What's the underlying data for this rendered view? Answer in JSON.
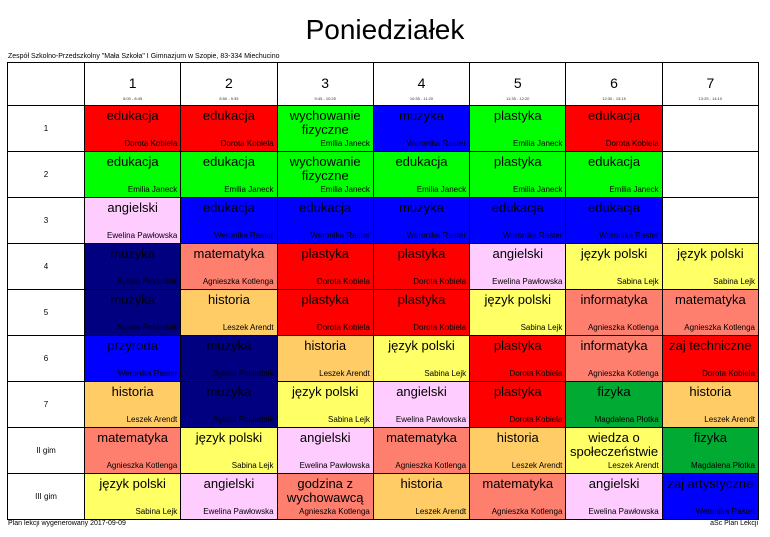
{
  "title": "Poniedziałek",
  "school": "Zespół Szkolno-Przedszkolny \"Mała Szkoła\" I Gimnazjum w Szopie, 83-334 Miechucino",
  "footer_left": "Plan lekcji wygenerowany 2017-09-09",
  "footer_right": "aSc Plan Lekcji",
  "periods": [
    {
      "num": "1",
      "time": "8:00 - 8:45"
    },
    {
      "num": "2",
      "time": "8:50 - 9:35"
    },
    {
      "num": "3",
      "time": "9:45 - 10:25"
    },
    {
      "num": "4",
      "time": "10:35 - 11:20"
    },
    {
      "num": "5",
      "time": "11:35 - 12:20"
    },
    {
      "num": "6",
      "time": "12:30 - 13:15"
    },
    {
      "num": "7",
      "time": "13:25 - 14:10"
    }
  ],
  "rows": [
    {
      "label": "1",
      "cells": [
        {
          "subject": "edukacja",
          "teacher": "Dorota Kobiela",
          "color": "red"
        },
        {
          "subject": "edukacja",
          "teacher": "Dorota Kobiela",
          "color": "red"
        },
        {
          "subject": "wychowanie fizyczne",
          "teacher": "Emilia Janeck",
          "color": "green"
        },
        {
          "subject": "muzyka",
          "teacher": "Weronika Raster",
          "color": "blue"
        },
        {
          "subject": "plastyka",
          "teacher": "Emilia Janeck",
          "color": "green"
        },
        {
          "subject": "edukacja",
          "teacher": "Dorota Kobiela",
          "color": "red"
        },
        {
          "subject": "",
          "teacher": "",
          "color": "white"
        }
      ]
    },
    {
      "label": "2",
      "cells": [
        {
          "subject": "edukacja",
          "teacher": "Emilia Janeck",
          "color": "green"
        },
        {
          "subject": "edukacja",
          "teacher": "Emilia Janeck",
          "color": "green"
        },
        {
          "subject": "wychowanie fizyczne",
          "teacher": "Emilia Janeck",
          "color": "green"
        },
        {
          "subject": "edukacja",
          "teacher": "Emilia Janeck",
          "color": "green"
        },
        {
          "subject": "plastyka",
          "teacher": "Emilia Janeck",
          "color": "green"
        },
        {
          "subject": "edukacja",
          "teacher": "Emilia Janeck",
          "color": "green"
        },
        {
          "subject": "",
          "teacher": "",
          "color": "white"
        }
      ]
    },
    {
      "label": "3",
      "cells": [
        {
          "subject": "angielski",
          "teacher": "Ewelina Pawłowska",
          "color": "pink"
        },
        {
          "subject": "edukacja",
          "teacher": "Weronika Raster",
          "color": "blue"
        },
        {
          "subject": "edukacja",
          "teacher": "Weronika Raster",
          "color": "blue"
        },
        {
          "subject": "muzyka",
          "teacher": "Weronika Raster",
          "color": "blue"
        },
        {
          "subject": "edukacja",
          "teacher": "Weronika Raster",
          "color": "blue"
        },
        {
          "subject": "edukacja",
          "teacher": "Weronika Raster",
          "color": "blue"
        },
        {
          "subject": "",
          "teacher": "",
          "color": "white"
        }
      ]
    },
    {
      "label": "4",
      "cells": [
        {
          "subject": "muzyka",
          "teacher": "Sylwia Pokładnik",
          "color": "navy"
        },
        {
          "subject": "matematyka",
          "teacher": "Agnieszka Kotlenga",
          "color": "salmon"
        },
        {
          "subject": "plastyka",
          "teacher": "Dorota Kobiela",
          "color": "red"
        },
        {
          "subject": "plastyka",
          "teacher": "Dorota Kobiela",
          "color": "red"
        },
        {
          "subject": "angielski",
          "teacher": "Ewelina Pawłowska",
          "color": "pink"
        },
        {
          "subject": "język polski",
          "teacher": "Sabina Lejk",
          "color": "yellow"
        },
        {
          "subject": "język polski",
          "teacher": "Sabina Lejk",
          "color": "yellow"
        }
      ]
    },
    {
      "label": "5",
      "cells": [
        {
          "subject": "muzyka",
          "teacher": "Sylwia Pokładnik",
          "color": "navy"
        },
        {
          "subject": "historia",
          "teacher": "Leszek Arendt",
          "color": "orange"
        },
        {
          "subject": "plastyka",
          "teacher": "Dorota Kobiela",
          "color": "red"
        },
        {
          "subject": "plastyka",
          "teacher": "Dorota Kobiela",
          "color": "red"
        },
        {
          "subject": "język polski",
          "teacher": "Sabina Lejk",
          "color": "yellow"
        },
        {
          "subject": "informatyka",
          "teacher": "Agnieszka Kotlenga",
          "color": "salmon"
        },
        {
          "subject": "matematyka",
          "teacher": "Agnieszka Kotlenga",
          "color": "salmon"
        }
      ]
    },
    {
      "label": "6",
      "cells": [
        {
          "subject": "przyroda",
          "teacher": "Weronika Raster",
          "color": "blue"
        },
        {
          "subject": "muzyka",
          "teacher": "Sylwia Pokładnik",
          "color": "navy"
        },
        {
          "subject": "historia",
          "teacher": "Leszek Arendt",
          "color": "orange"
        },
        {
          "subject": "język polski",
          "teacher": "Sabina Lejk",
          "color": "yellow"
        },
        {
          "subject": "plastyka",
          "teacher": "Dorota Kobiela",
          "color": "red"
        },
        {
          "subject": "informatyka",
          "teacher": "Agnieszka Kotlenga",
          "color": "salmon"
        },
        {
          "subject": "zaj techniczne",
          "teacher": "Dorota Kobiela",
          "color": "red"
        }
      ]
    },
    {
      "label": "7",
      "cells": [
        {
          "subject": "historia",
          "teacher": "Leszek Arendt",
          "color": "orange"
        },
        {
          "subject": "muzyka",
          "teacher": "Sylwia Pokładnik",
          "color": "navy"
        },
        {
          "subject": "język polski",
          "teacher": "Sabina Lejk",
          "color": "yellow"
        },
        {
          "subject": "angielski",
          "teacher": "Ewelina Pawłowska",
          "color": "pink"
        },
        {
          "subject": "plastyka",
          "teacher": "Dorota Kobiela",
          "color": "red"
        },
        {
          "subject": "fizyka",
          "teacher": "Magdalena Płotka",
          "color": "dgreen"
        },
        {
          "subject": "historia",
          "teacher": "Leszek Arendt",
          "color": "orange"
        }
      ]
    },
    {
      "label": "II gim",
      "cells": [
        {
          "subject": "matematyka",
          "teacher": "Agnieszka Kotlenga",
          "color": "salmon"
        },
        {
          "subject": "język polski",
          "teacher": "Sabina Lejk",
          "color": "yellow"
        },
        {
          "subject": "angielski",
          "teacher": "Ewelina Pawłowska",
          "color": "pink"
        },
        {
          "subject": "matematyka",
          "teacher": "Agnieszka Kotlenga",
          "color": "salmon"
        },
        {
          "subject": "historia",
          "teacher": "Leszek Arendt",
          "color": "orange"
        },
        {
          "subject": "wiedza o społeczeństwie",
          "teacher": "Leszek Arendt",
          "color": "yellow"
        },
        {
          "subject": "fizyka",
          "teacher": "Magdalena Płotka",
          "color": "dgreen"
        }
      ]
    },
    {
      "label": "III gim",
      "cells": [
        {
          "subject": "język polski",
          "teacher": "Sabina Lejk",
          "color": "yellow"
        },
        {
          "subject": "angielski",
          "teacher": "Ewelina Pawłowska",
          "color": "pink"
        },
        {
          "subject": "godzina z wychowawcą",
          "teacher": "Agnieszka Kotlenga",
          "color": "salmon"
        },
        {
          "subject": "historia",
          "teacher": "Leszek Arendt",
          "color": "orange"
        },
        {
          "subject": "matematyka",
          "teacher": "Agnieszka Kotlenga",
          "color": "salmon"
        },
        {
          "subject": "angielski",
          "teacher": "Ewelina Pawłowska",
          "color": "pink"
        },
        {
          "subject": "zaj artystyczne",
          "teacher": "Weronika Raster",
          "color": "blue"
        }
      ]
    }
  ]
}
